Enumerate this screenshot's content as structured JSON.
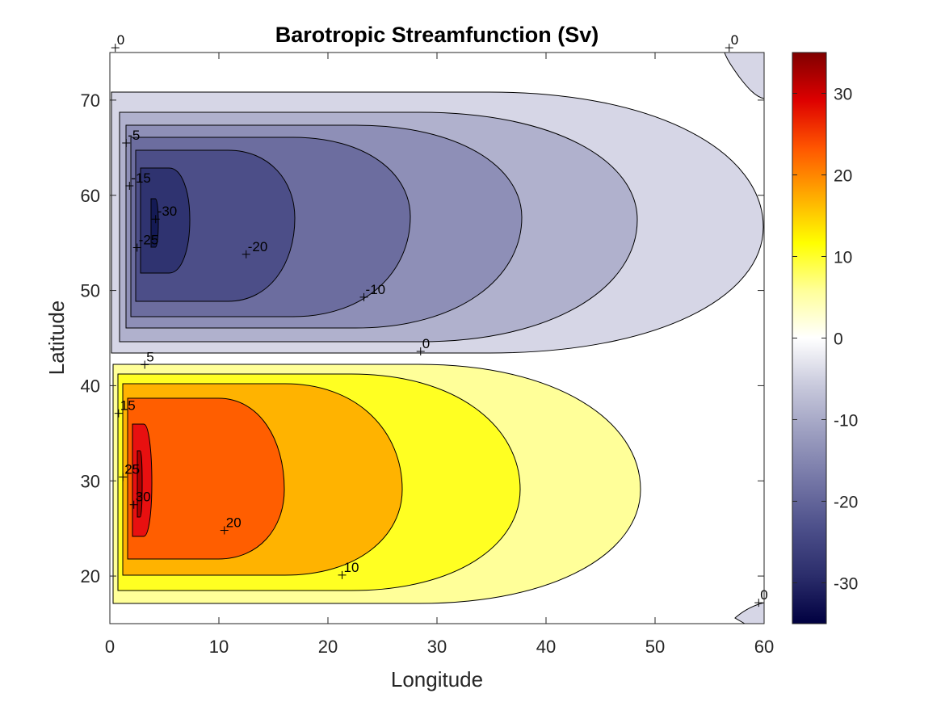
{
  "chart_data": {
    "type": "contourf",
    "title": "Barotropic Streamfunction (Sv)",
    "xlabel": "Longitude",
    "ylabel": "Latitude",
    "xlim": [
      0,
      60
    ],
    "ylim": [
      15,
      75
    ],
    "xticks": [
      0,
      10,
      20,
      30,
      40,
      50,
      60
    ],
    "yticks": [
      20,
      30,
      40,
      50,
      60,
      70
    ],
    "colorbar": {
      "limits": [
        -35,
        35
      ],
      "ticks": [
        -30,
        -20,
        -10,
        0,
        10,
        20,
        30
      ],
      "colormap": [
        "#000040",
        "#2b2d6b",
        "#4c4f8a",
        "#7476a6",
        "#9c9ec0",
        "#c8c9dc",
        "#ffffff",
        "#ffff99",
        "#ffff00",
        "#ffaa00",
        "#ff5500",
        "#dd0000",
        "#800000"
      ]
    },
    "contour_levels": [
      -30,
      -25,
      -20,
      -15,
      -10,
      -5,
      0,
      5,
      10,
      15,
      20,
      25,
      30
    ],
    "fill_colors": {
      "neg_0_5": "#d6d6e6",
      "neg_5_10": "#b0b1cd",
      "neg_10_15": "#8e8fb7",
      "neg_15_20": "#6c6d9f",
      "neg_20_25": "#4c4e88",
      "neg_25_30": "#2f3370",
      "neg_30_35": "#141a55",
      "pos_0_5": "#ffff99",
      "pos_5_10": "#ffff22",
      "pos_10_15": "#ffb300",
      "pos_15_20": "#ff5e00",
      "pos_20_25": "#e81010",
      "pos_25_30": "#b00000"
    },
    "subpolar_gyre": {
      "center_lon": 4,
      "center_lat": 57,
      "min_value": -32,
      "sign": "negative"
    },
    "subtropical_gyre": {
      "center_lon": 2.5,
      "center_lat": 30,
      "max_value": 32,
      "sign": "positive"
    },
    "contour_labels": [
      {
        "text": "0",
        "lon": 0.5,
        "lat": 75.5
      },
      {
        "text": "0",
        "lon": 56.8,
        "lat": 75.5
      },
      {
        "text": "-5",
        "lon": 1.5,
        "lat": 65.5
      },
      {
        "text": "-15",
        "lon": 1.8,
        "lat": 61.0
      },
      {
        "text": "-30",
        "lon": 4.2,
        "lat": 57.5
      },
      {
        "text": "-25",
        "lon": 2.5,
        "lat": 54.5
      },
      {
        "text": "-20",
        "lon": 12.5,
        "lat": 53.8
      },
      {
        "text": "-10",
        "lon": 23.3,
        "lat": 49.3
      },
      {
        "text": "0",
        "lon": 28.5,
        "lat": 43.6
      },
      {
        "text": "5",
        "lon": 3.2,
        "lat": 42.2
      },
      {
        "text": "15",
        "lon": 0.8,
        "lat": 37.1
      },
      {
        "text": "25",
        "lon": 1.2,
        "lat": 30.4
      },
      {
        "text": "30",
        "lon": 2.2,
        "lat": 27.5
      },
      {
        "text": "20",
        "lon": 10.5,
        "lat": 24.8
      },
      {
        "text": "10",
        "lon": 21.3,
        "lat": 20.1
      },
      {
        "text": "0",
        "lon": 59.5,
        "lat": 17.2
      }
    ]
  }
}
